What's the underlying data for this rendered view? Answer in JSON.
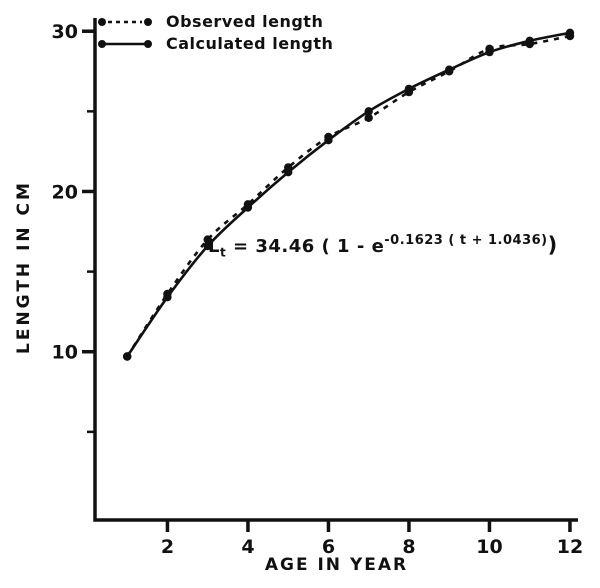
{
  "figure": {
    "legend": {
      "items": [
        {
          "label": "Observed length",
          "style": "dashed"
        },
        {
          "label": "Calculated length",
          "style": "solid"
        }
      ]
    },
    "equation": {
      "lhs": "L",
      "sub": "t",
      "mid": " = 34.46 ( 1 - e",
      "sup": "-0.1623 ( t + 1.0436)",
      "end": ")"
    }
  },
  "chart_data": {
    "type": "line",
    "x": [
      1,
      2,
      3,
      4,
      5,
      6,
      7,
      8,
      9,
      10,
      11,
      12
    ],
    "series": [
      {
        "name": "Observed length",
        "style": "dashed",
        "values": [
          9.7,
          13.6,
          17.0,
          19.2,
          21.5,
          23.4,
          24.6,
          26.2,
          27.5,
          28.9,
          29.2,
          29.7
        ]
      },
      {
        "name": "Calculated length",
        "style": "solid",
        "values": [
          9.7,
          13.4,
          16.6,
          19.0,
          21.2,
          23.2,
          25.0,
          26.4,
          27.6,
          28.7,
          29.4,
          29.9
        ]
      }
    ],
    "title": "",
    "xlabel": "AGE IN YEAR",
    "ylabel": "LENGTH IN CM",
    "xlim": [
      0.2,
      12.2
    ],
    "ylim": [
      -0.5,
      30.7
    ],
    "x_ticks": [
      2,
      4,
      6,
      8,
      10,
      12
    ],
    "y_ticks": [
      10,
      20,
      30
    ],
    "y_minor_ticks": [
      5,
      15,
      25
    ],
    "grid": false,
    "legend_position": "top-left",
    "annotation": "Lt = 34.46(1-e^-0.1623(t+1.0436))",
    "ink_color": "#111111",
    "background_color": "#ffffff"
  }
}
